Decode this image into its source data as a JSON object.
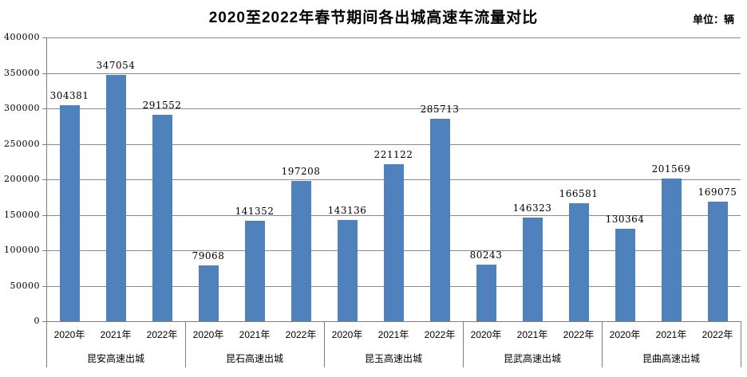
{
  "title": "2020至2022年春节期间各出城高速车流量对比",
  "unit_label": "单位：辆",
  "chart_data": {
    "type": "bar",
    "title": "2020至2022年春节期间各出城高速车流量对比",
    "unit": "单位：辆",
    "categories": [
      "昆安高速出城",
      "昆石高速出城",
      "昆玉高速出城",
      "昆武高速出城",
      "昆曲高速出城"
    ],
    "series": [
      {
        "name": "2020年",
        "values": [
          304381,
          79068,
          143136,
          80243,
          130364
        ]
      },
      {
        "name": "2021年",
        "values": [
          347054,
          141352,
          221122,
          146323,
          201569
        ]
      },
      {
        "name": "2022年",
        "values": [
          291552,
          197208,
          285713,
          166581,
          169075
        ]
      }
    ],
    "xlabel": "",
    "ylabel": "",
    "ylim": [
      0,
      400000
    ],
    "ytick_step": 50000,
    "grid": true,
    "legend_position": "none",
    "data_labels": true,
    "bar_color": "#4F81BD",
    "gridline_color": "#8a8a8a",
    "axis_color": "#808080",
    "text_color": "#000000"
  }
}
